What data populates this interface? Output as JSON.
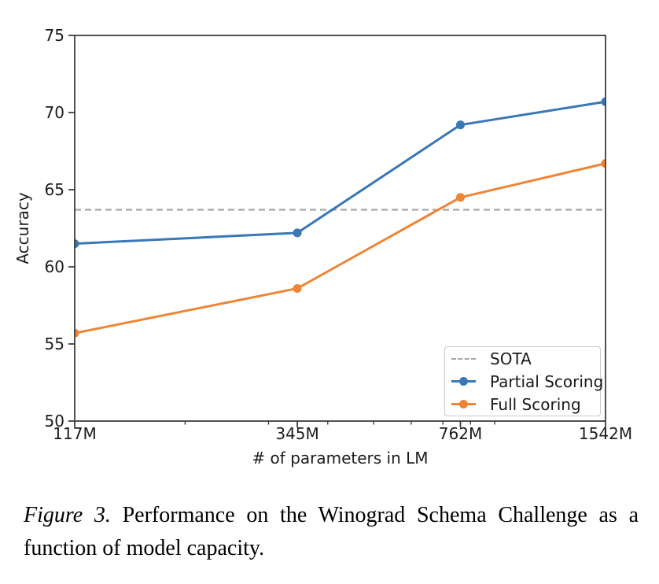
{
  "figure": {
    "caption_label": "Figure 3.",
    "caption_text": "Performance on the Winograd Schema Challenge as a function of model capacity."
  },
  "chart_data": {
    "type": "line",
    "title": "",
    "xlabel": "# of parameters in LM",
    "ylabel": "Accuracy",
    "x_scale": "log",
    "x": [
      117,
      345,
      762,
      1542
    ],
    "x_tick_labels": [
      "117M",
      "345M",
      "762M",
      "1542M"
    ],
    "x_minor_ticks": [
      200,
      300,
      400,
      500,
      600,
      700,
      800,
      900
    ],
    "ylim": [
      50,
      75
    ],
    "yticks": [
      50,
      55,
      60,
      65,
      70,
      75
    ],
    "grid": false,
    "legend_position": "lower right",
    "series": [
      {
        "name": "Partial Scoring",
        "color": "#3878b4",
        "values": [
          61.5,
          62.2,
          69.2,
          70.7
        ]
      },
      {
        "name": "Full Scoring",
        "color": "#ef8434",
        "values": [
          55.7,
          58.6,
          64.5,
          66.7
        ]
      }
    ],
    "reference_line": {
      "name": "SOTA",
      "value": 63.7,
      "color": "#a8a8a8",
      "style": "dashed"
    },
    "colors": {
      "spine": "#333333",
      "tick_text": "#1c1c1c"
    }
  }
}
